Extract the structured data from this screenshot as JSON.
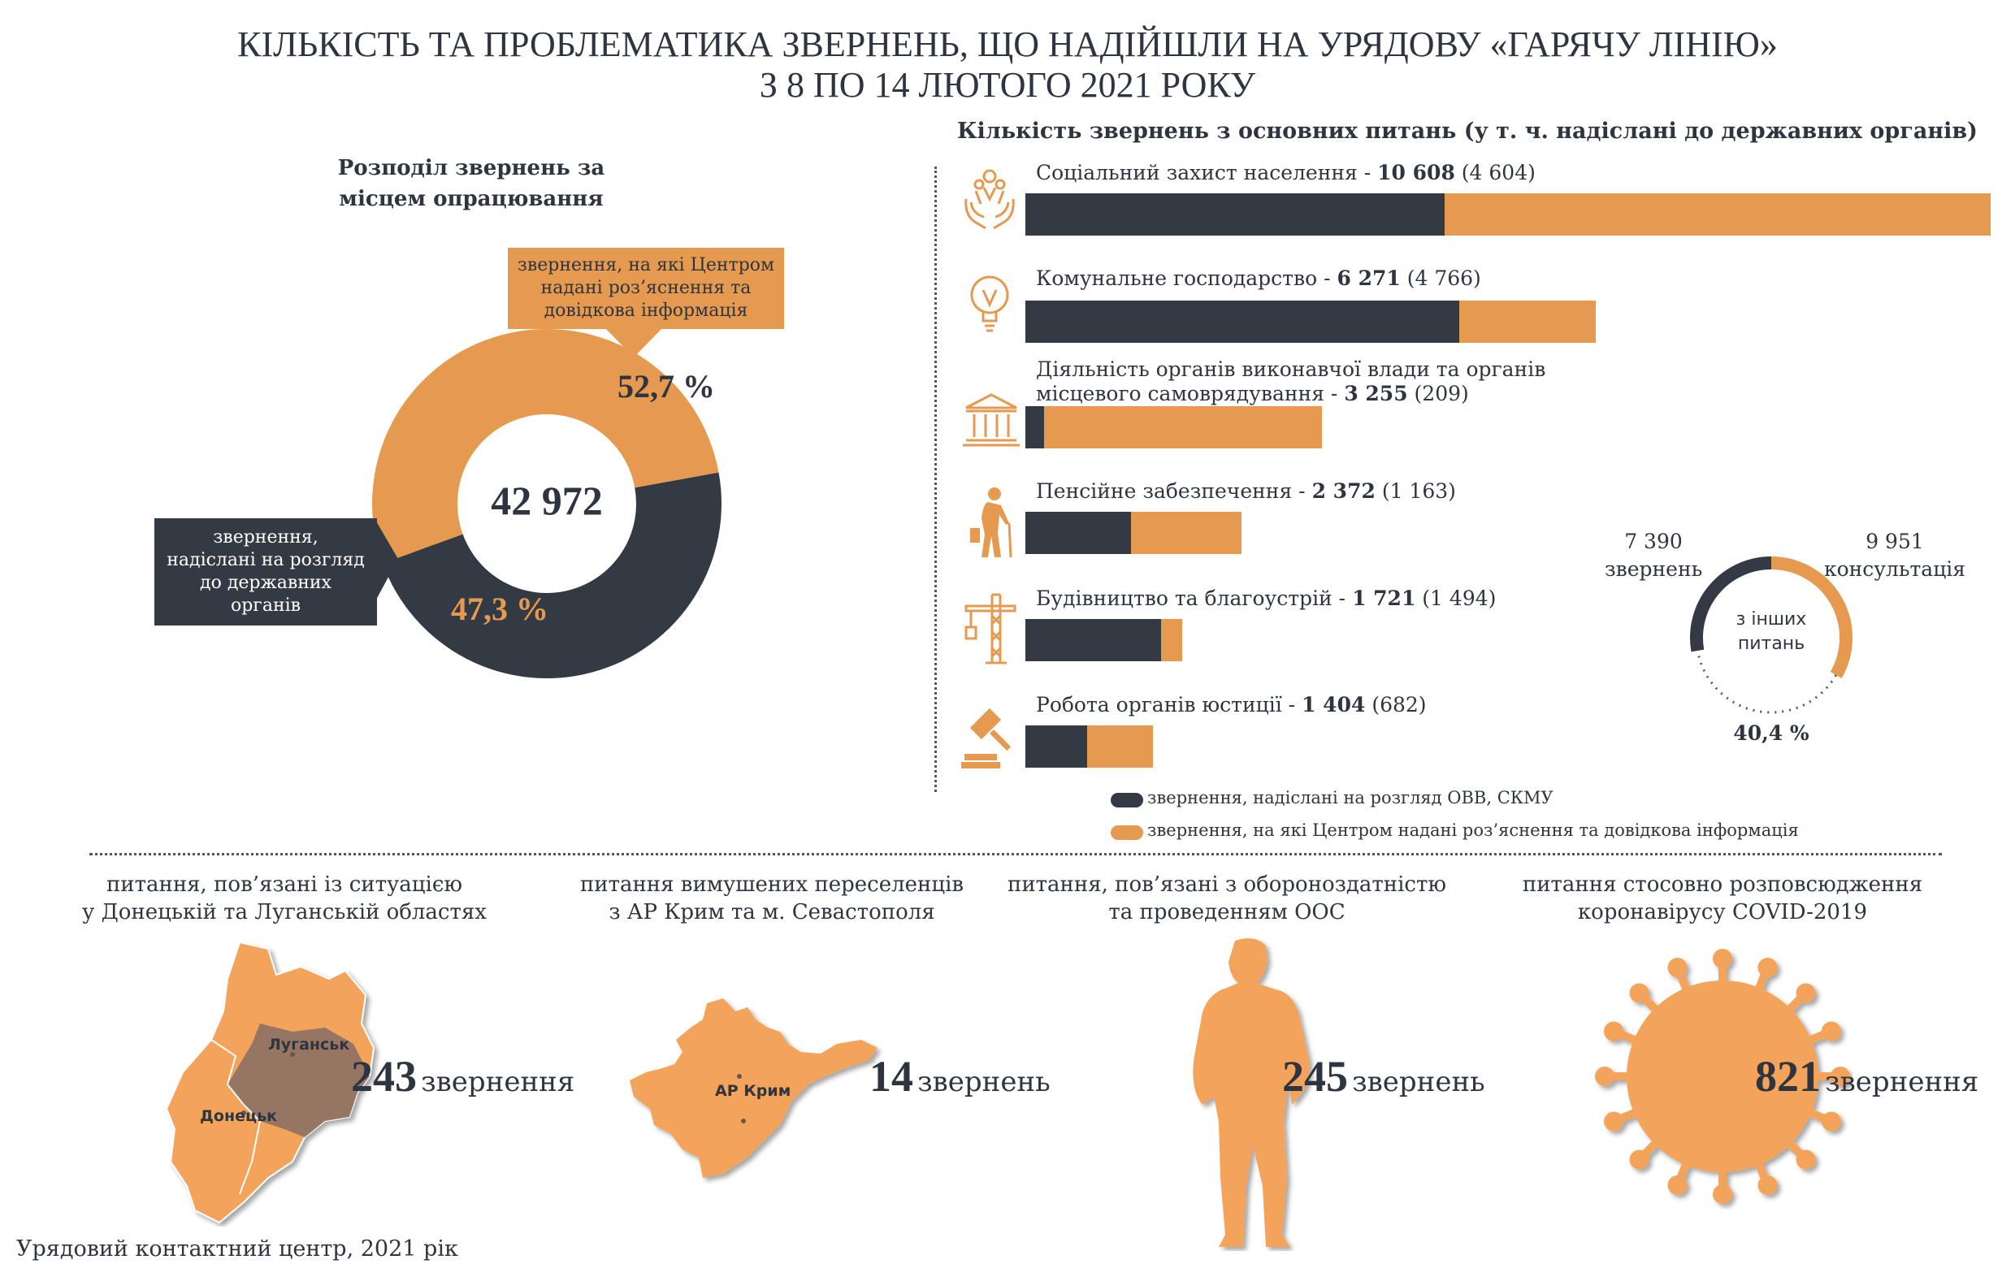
{
  "title": {
    "line1": "КІЛЬКІСТЬ ТА ПРОБЛЕМАТИКА ЗВЕРНЕНЬ, ЩО НАДІЙШЛИ НА УРЯДОВУ «ГАРЯЧУ ЛІНІЮ»",
    "line2": "З 8 ПО 14 ЛЮТОГО 2021 РОКУ"
  },
  "colors": {
    "dark": "#333a44",
    "orange": "#e59a50",
    "orange_light": "#f4a45a",
    "map_brown": "#8c7163"
  },
  "chart_data": [
    {
      "type": "pie",
      "title_line1": "Розподіл звернень за",
      "title_line2": "місцем опрацювання",
      "total": "42 972",
      "slices": [
        {
          "label": "звернення, на які Центром надані роз’яснення та довідкова інформація",
          "label_lines": [
            "звернення, на які Центром",
            "надані роз’яснення та",
            "довідкова інформація"
          ],
          "value": 52.7,
          "display": "52,7 %",
          "color": "#e59a50"
        },
        {
          "label": "звернення, надіслані на розгляд до державних органів",
          "label_lines": [
            "звернення,",
            "надіслані на розгляд",
            "до державних органів"
          ],
          "value": 47.3,
          "display": "47,3 %",
          "color": "#333a44"
        }
      ]
    },
    {
      "type": "bar",
      "orientation": "horizontal",
      "stacked": true,
      "title": "Кількість звернень з основних питань (у т. ч. надіслані до державних органів)",
      "categories": [
        {
          "name": "Соціальний захист населення - ",
          "name_line2": "",
          "total": 10608,
          "total_text": "10 608",
          "sent": 4604,
          "sent_text": "(4 604)",
          "icon": "people-hands-icon"
        },
        {
          "name": "Комунальне господарство - ",
          "name_line2": "",
          "total": 6271,
          "total_text": "6 271",
          "sent": 4766,
          "sent_text": "(4 766)",
          "icon": "lightbulb-icon"
        },
        {
          "name": "Діяльність органів виконавчої влади та органів",
          "name_line2": "місцевого самоврядування - ",
          "total": 3255,
          "total_text": "3 255",
          "sent": 209,
          "sent_text": "(209)",
          "icon": "government-building-icon"
        },
        {
          "name": "Пенсійне забезпечення - ",
          "name_line2": "",
          "total": 2372,
          "total_text": "2 372",
          "sent": 1163,
          "sent_text": "(1 163)",
          "icon": "elderly-person-icon"
        },
        {
          "name": "Будівництво та благоустрій - ",
          "name_line2": "",
          "total": 1721,
          "total_text": "1 721",
          "sent": 1494,
          "sent_text": "(1 494)",
          "icon": "crane-icon"
        },
        {
          "name": "Робота органів юстиції - ",
          "name_line2": "",
          "total": 1404,
          "total_text": "1 404",
          "sent": 682,
          "sent_text": "(682)",
          "icon": "gavel-icon"
        }
      ],
      "series": [
        {
          "name": "звернення, надіслані на розгляд ОВВ, СКМУ",
          "color": "#333a44"
        },
        {
          "name": "звернення, на які Центром надані роз’яснення та довідкова інформація",
          "color": "#e59a50"
        }
      ]
    },
    {
      "type": "pie",
      "center_label_lines": [
        "з інших",
        "питань"
      ],
      "left_value": "7 390",
      "left_label": "звернень",
      "right_value": "9 951",
      "right_label": "консультація",
      "percent": 40.4,
      "percent_text": "40,4 %"
    }
  ],
  "bottom": [
    {
      "caption_lines": [
        "питання, пов’язані із ситуацією",
        "у Донецькій та Луганській областях"
      ],
      "number": "243",
      "unit": "звернення",
      "map_labels": {
        "luhansk": "Луганськ",
        "donetsk": "Донецьк"
      },
      "icon": "donbas-map-icon"
    },
    {
      "caption_lines": [
        "питання вимушених переселенців",
        "з АР Крим та м. Севастополя"
      ],
      "number": "14",
      "unit": "звернень",
      "map_labels": {
        "crimea": "АР Крим"
      },
      "icon": "crimea-map-icon"
    },
    {
      "caption_lines": [
        "питання, пов’язані з обороноздатністю",
        "та проведенням ООС"
      ],
      "number": "245",
      "unit": "звернень",
      "icon": "soldier-silhouette-icon"
    },
    {
      "caption_lines": [
        "питання стосовно розповсюдження",
        "коронавірусу COVID-2019"
      ],
      "number": "821",
      "unit": "звернення",
      "icon": "coronavirus-icon"
    }
  ],
  "footer": "Урядовий контактний центр, 2021 рік"
}
